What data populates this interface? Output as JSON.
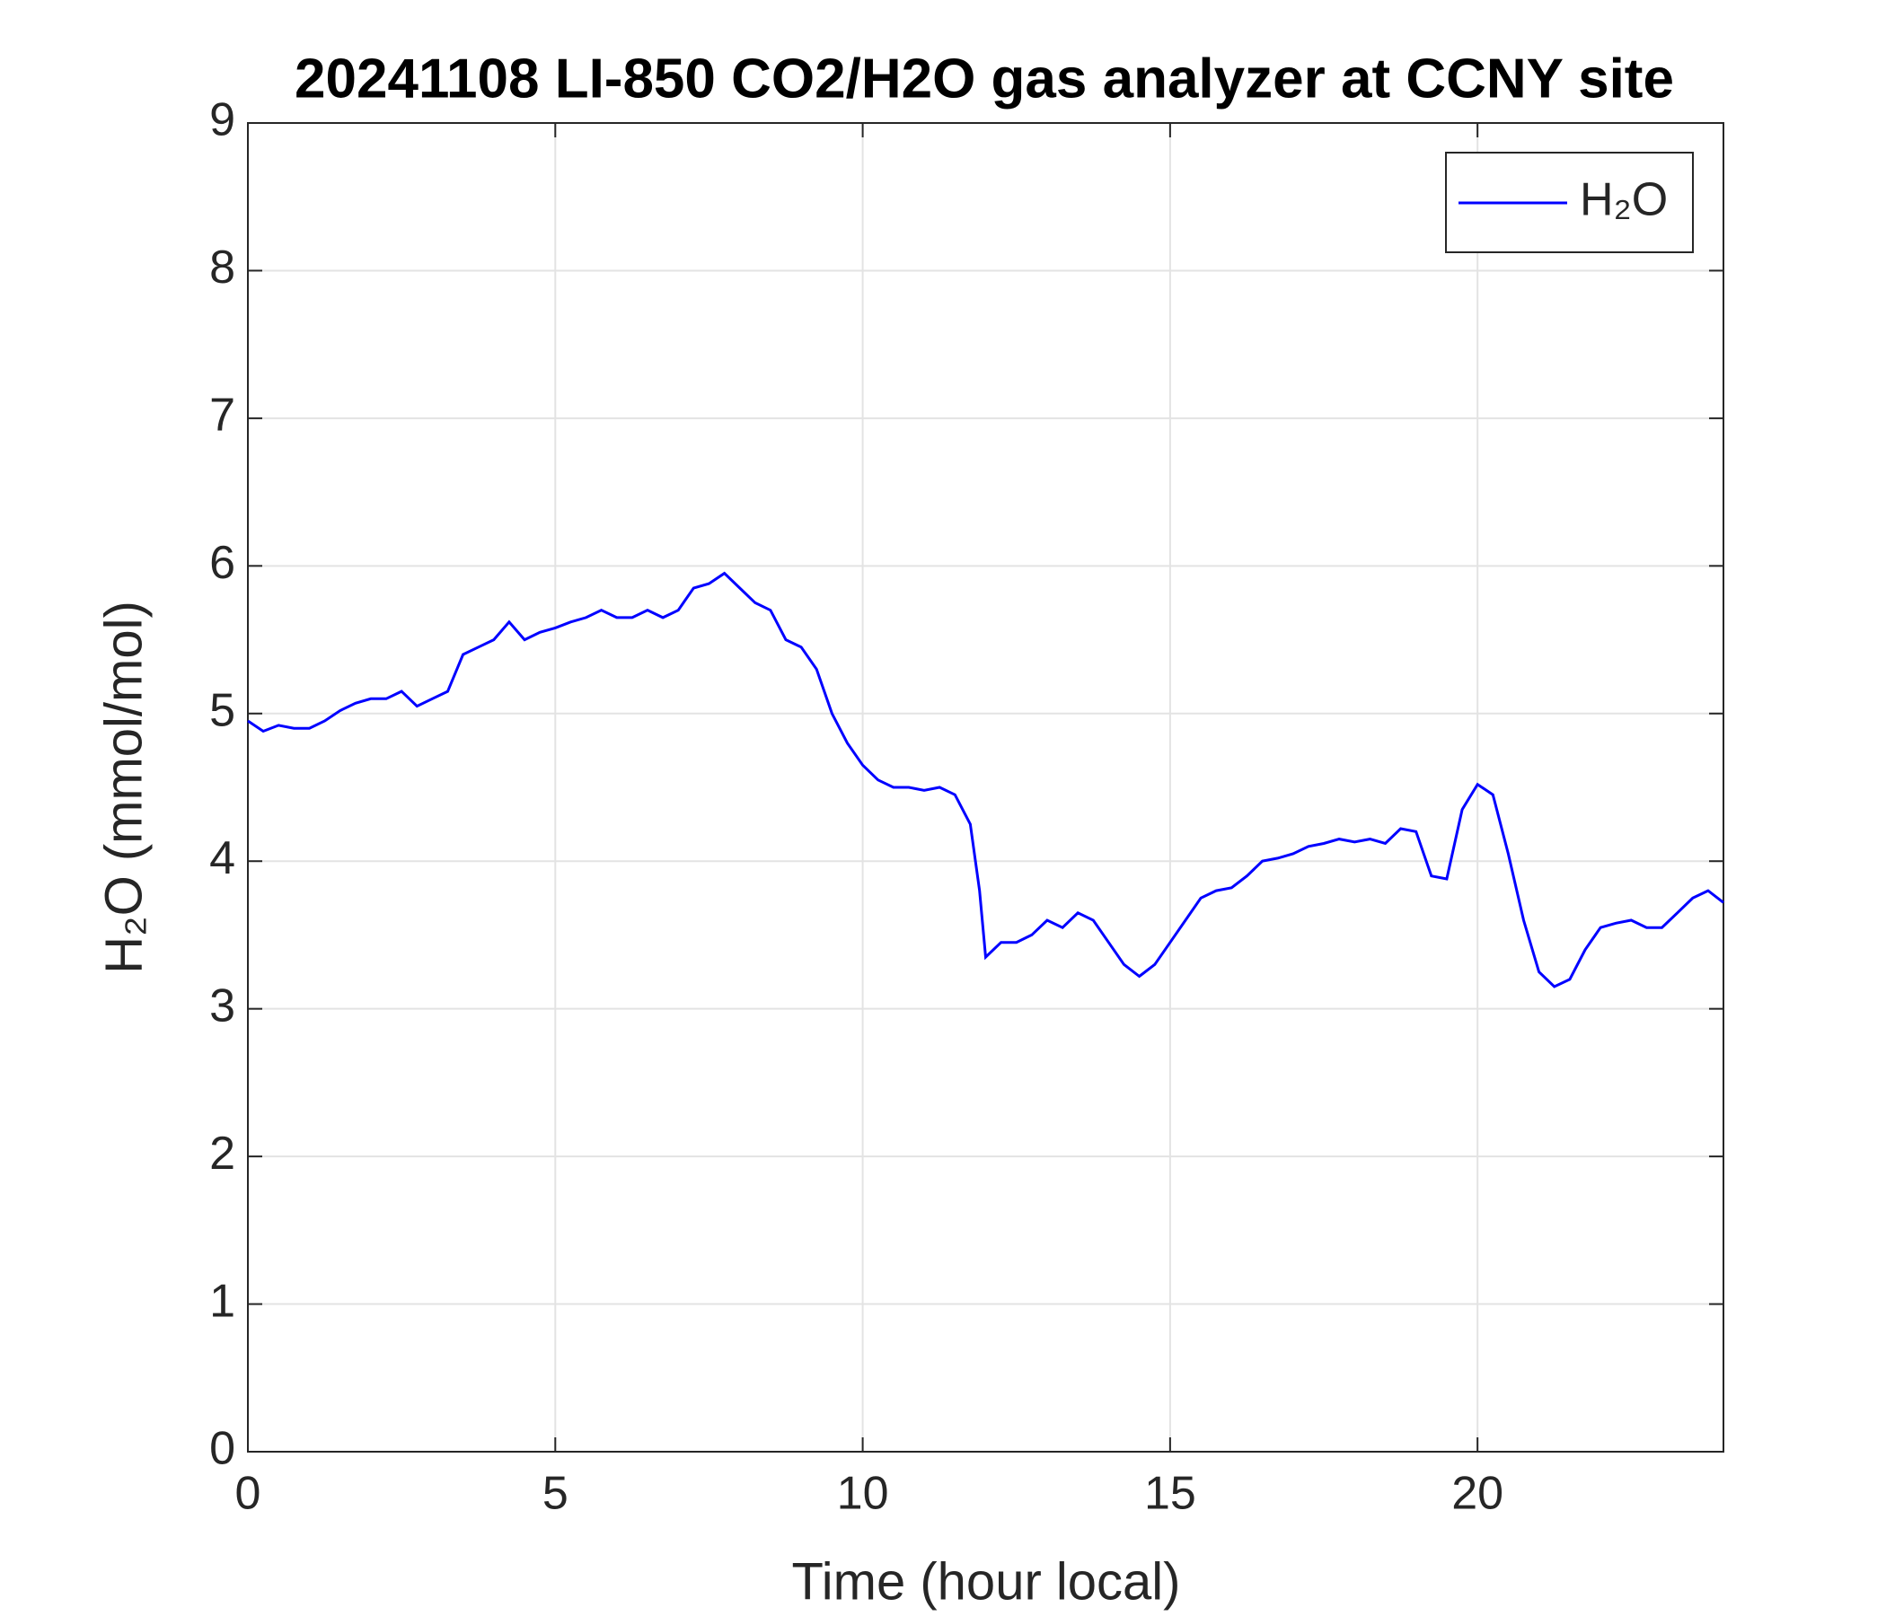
{
  "chart_data": {
    "type": "line",
    "title": "20241108 LI-850 CO2/H2O gas analyzer at CCNY site",
    "xlabel": "Time (hour local)",
    "ylabel": "H₂O (mmol/mol)",
    "x": [
      0,
      0.25,
      0.5,
      0.75,
      1,
      1.25,
      1.5,
      1.75,
      2,
      2.25,
      2.5,
      2.75,
      3,
      3.25,
      3.5,
      3.75,
      4,
      4.25,
      4.5,
      4.75,
      5,
      5.25,
      5.5,
      5.75,
      6,
      6.25,
      6.5,
      6.75,
      7,
      7.25,
      7.5,
      7.75,
      8,
      8.25,
      8.5,
      8.75,
      9,
      9.25,
      9.5,
      9.75,
      10,
      10.25,
      10.5,
      10.75,
      11,
      11.25,
      11.5,
      11.75,
      11.9,
      12,
      12.25,
      12.5,
      12.75,
      13,
      13.25,
      13.5,
      13.75,
      14,
      14.25,
      14.5,
      14.75,
      15,
      15.25,
      15.5,
      15.75,
      16,
      16.25,
      16.5,
      16.75,
      17,
      17.25,
      17.5,
      17.75,
      18,
      18.25,
      18.5,
      18.75,
      19,
      19.25,
      19.5,
      19.75,
      20,
      20.25,
      20.5,
      20.75,
      21,
      21.25,
      21.5,
      21.75,
      22,
      22.25,
      22.5,
      22.75,
      23,
      23.25,
      23.5,
      23.75,
      24
    ],
    "series": [
      {
        "name": "H₂O",
        "color": "#0000ff",
        "values": [
          4.95,
          4.88,
          4.92,
          4.9,
          4.9,
          4.95,
          5.02,
          5.07,
          5.1,
          5.1,
          5.15,
          5.05,
          5.1,
          5.15,
          5.4,
          5.45,
          5.5,
          5.62,
          5.5,
          5.55,
          5.58,
          5.62,
          5.65,
          5.7,
          5.65,
          5.65,
          5.7,
          5.65,
          5.7,
          5.85,
          5.88,
          5.95,
          5.85,
          5.75,
          5.7,
          5.5,
          5.45,
          5.3,
          5.0,
          4.8,
          4.65,
          4.55,
          4.5,
          4.5,
          4.48,
          4.5,
          4.45,
          4.25,
          3.8,
          3.35,
          3.45,
          3.45,
          3.5,
          3.6,
          3.55,
          3.65,
          3.6,
          3.45,
          3.3,
          3.22,
          3.3,
          3.45,
          3.6,
          3.75,
          3.8,
          3.82,
          3.9,
          4.0,
          4.02,
          4.05,
          4.1,
          4.12,
          4.15,
          4.13,
          4.15,
          4.12,
          4.22,
          4.2,
          3.9,
          3.88,
          4.35,
          4.52,
          4.45,
          4.05,
          3.6,
          3.25,
          3.15,
          3.2,
          3.4,
          3.55,
          3.58,
          3.6,
          3.55,
          3.55,
          3.65,
          3.75,
          3.8,
          3.72
        ]
      }
    ],
    "xlim": [
      0,
      24
    ],
    "xticks": [
      0,
      5,
      10,
      15,
      20
    ],
    "ylim": [
      0,
      9
    ],
    "yticks": [
      0,
      1,
      2,
      3,
      4,
      5,
      6,
      7,
      8,
      9
    ],
    "grid": true,
    "legend": "northeast"
  }
}
